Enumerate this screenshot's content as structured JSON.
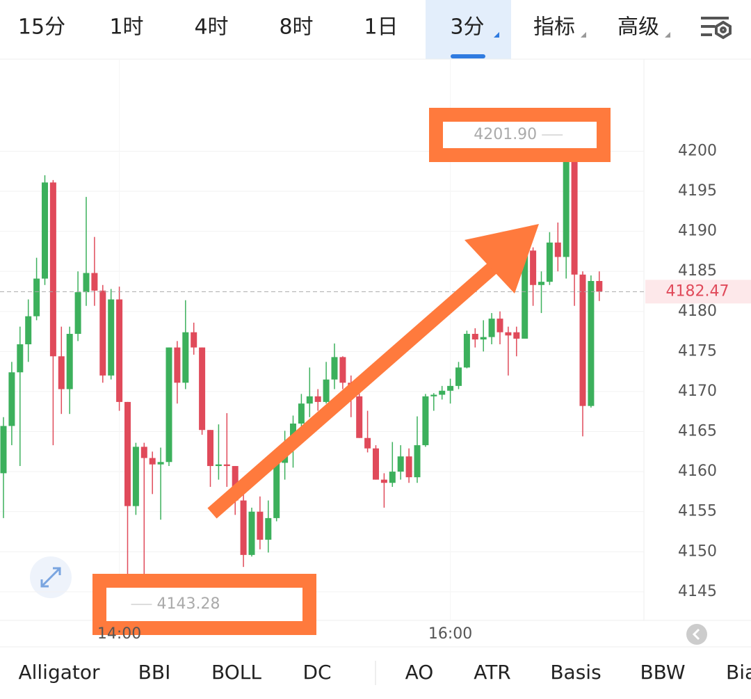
{
  "tabs": [
    "15分",
    "1时",
    "4时",
    "8时",
    "1日",
    "3分",
    "指标",
    "高级"
  ],
  "indicators": [
    "Alligator",
    "BBI",
    "BOLL",
    "DC",
    "AO",
    "ATR",
    "Basis",
    "BBW",
    "Bia"
  ],
  "chart_data": {
    "type": "candlestick",
    "up_color": "#3cb05c",
    "down_color": "#e04a5a",
    "categories": [
      null,
      null,
      null,
      null,
      null,
      null,
      null,
      null,
      null,
      null,
      null,
      null,
      null,
      null,
      "14:00",
      null,
      null,
      null,
      null,
      null,
      null,
      null,
      null,
      null,
      null,
      null,
      null,
      null,
      null,
      null,
      null,
      null,
      null,
      null,
      null,
      null,
      null,
      null,
      null,
      null,
      null,
      null,
      null,
      null,
      null,
      null,
      null,
      null,
      null,
      null,
      null,
      null,
      null,
      null,
      "16:00",
      null,
      null,
      null,
      null,
      null,
      null,
      null,
      null,
      null,
      null,
      null,
      null,
      null,
      null,
      null,
      null,
      null,
      null
    ],
    "open": [
      4159.8,
      4165.7,
      4172.4,
      4175.9,
      4179.4,
      4184.1,
      4196.1,
      4174.4,
      4170.3,
      4177.2,
      4182.4,
      4184.8,
      4182.6,
      4172,
      4181.5,
      4168.7,
      4155.7,
      4163.1,
      4161.7,
      4160.9,
      4161.2,
      4175.5,
      4171.1,
      4177.4,
      4175.5,
      4165.2,
      4160.7,
      4160.9,
      4160.7,
      4156.4,
      4149.6,
      4155,
      4151.5,
      4154.2,
      4161.1,
      4162.9,
      4166,
      4168.5,
      4169.4,
      4168.7,
      4171.5,
      4174.3,
      4171.1,
      4169.4,
      4164.2,
      4162.9,
      4159,
      4158.6,
      4160,
      4161.9,
      4159.3,
      4163.3,
      4169.4,
      4169.6,
      4170.1,
      4170.7,
      4173,
      4177.2,
      4176.5,
      4176.8,
      4179.1,
      4177.4,
      4177.4,
      4176.6,
      4187.6,
      4183.3,
      4183.7,
      4188.6,
      4186.8,
      4198.7,
      4184.6,
      4168.2,
      4183.8
    ],
    "high": [
      4166.8,
      4173.7,
      4178.1,
      4181.5,
      4186.7,
      4197,
      4196.4,
      4178.1,
      4178.1,
      4185,
      4194.3,
      4189.3,
      4183.3,
      4182.8,
      4183.1,
      4168.7,
      4163.6,
      4163.6,
      4162.5,
      4163,
      4175.5,
      4176.3,
      4181.4,
      4178.6,
      4175.5,
      4165.2,
      4165.9,
      4167.3,
      4160.7,
      4157.3,
      4155.5,
      4156.9,
      4156.4,
      4162.6,
      4165.1,
      4167,
      4169.7,
      4173,
      4170.3,
      4173.7,
      4176,
      4174.4,
      4172,
      4170.3,
      4167.6,
      4163.3,
      4159.8,
      4163.7,
      4163.3,
      4162.9,
      4166.9,
      4169.7,
      4169.8,
      4170.7,
      4171.6,
      4173.7,
      4177.6,
      4177.9,
      4178.9,
      4179.8,
      4180,
      4178.1,
      4178.1,
      4187.9,
      4188,
      4185,
      4189.9,
      4191.1,
      4201.9,
      4198.7,
      4185,
      4184.5,
      4185
    ],
    "low": [
      4154.2,
      4163.3,
      4160.7,
      4173.7,
      4178.9,
      4183.3,
      4163.3,
      4167.2,
      4167.2,
      4176.3,
      4180.7,
      4180.7,
      4171.1,
      4171.5,
      4167.6,
      4143.28,
      4154.6,
      4146.8,
      4157.2,
      4154,
      4160.7,
      4168.5,
      4170.3,
      4174.6,
      4164.6,
      4158.1,
      4159,
      4158.1,
      4154.6,
      4148.1,
      4149.4,
      4150.3,
      4149.9,
      4153.8,
      4159,
      4160.5,
      4165.1,
      4166.8,
      4167.6,
      4168.5,
      4170.3,
      4170.3,
      4166.8,
      4164.2,
      4162.4,
      4159,
      4155.5,
      4158.1,
      4159,
      4158.6,
      4158.6,
      4163.1,
      4167.6,
      4169,
      4168.5,
      4170.3,
      4172.9,
      4175.5,
      4175,
      4175.9,
      4175.9,
      4172,
      4174.4,
      4177.2,
      4180.7,
      4179.8,
      4183.3,
      4185,
      4184.1,
      4180.7,
      4164.4,
      4168,
      4181.3
    ],
    "close": [
      4165.7,
      4172.4,
      4175.9,
      4179.4,
      4184.1,
      4196.1,
      4174.4,
      4170.3,
      4177.2,
      4182.4,
      4184.8,
      4182.6,
      4172,
      4181.5,
      4168.7,
      4155.7,
      4163.1,
      4161.7,
      4160.9,
      4161.2,
      4175.5,
      4171.1,
      4177.4,
      4175.5,
      4165.2,
      4160.7,
      4160.9,
      4160.7,
      4156.4,
      4149.6,
      4155,
      4151.5,
      4154.2,
      4161.1,
      4162.9,
      4166,
      4168.5,
      4169.4,
      4168.7,
      4171.5,
      4174.3,
      4171.1,
      4169.4,
      4164.2,
      4162.9,
      4159,
      4158.6,
      4160,
      4161.9,
      4159.3,
      4163.3,
      4169.4,
      4169.6,
      4170.1,
      4170.7,
      4173,
      4177.2,
      4176.5,
      4176.8,
      4179.1,
      4177.4,
      4177,
      4176.6,
      4187.6,
      4183.3,
      4183.7,
      4188.6,
      4186.8,
      4198.7,
      4184.6,
      4168.2,
      4183.8,
      4182.47
    ],
    "ylim": [
      4141.6,
      4211.5
    ],
    "yticks": [
      4145,
      4150,
      4155,
      4160,
      4165,
      4170,
      4175,
      4180,
      4185,
      4190,
      4195,
      4200
    ],
    "grid": true,
    "annotations": [
      "4201.90",
      "4143.28"
    ]
  }
}
